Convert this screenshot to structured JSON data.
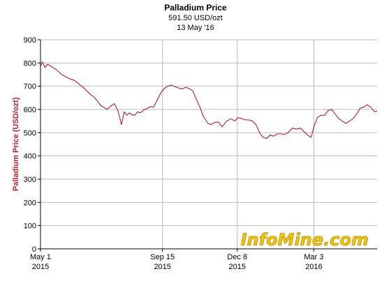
{
  "chart_data": {
    "type": "line",
    "title": "Palladium Price",
    "subtitle": "591.50 USD/ozt",
    "date_label": "13 May '16",
    "ylabel": "Palladium Price (USD/ozt)",
    "xlabel": "",
    "ylim": [
      0,
      900
    ],
    "yticks": [
      0,
      100,
      200,
      300,
      400,
      500,
      600,
      700,
      800,
      900
    ],
    "xlim": [
      "2015-05-01",
      "2016-05-13"
    ],
    "xticks": [
      {
        "date": "2015-05-01",
        "label": "May 1",
        "year": "2015"
      },
      {
        "date": "2015-09-15",
        "label": "Sep 15",
        "year": "2015"
      },
      {
        "date": "2015-12-08",
        "label": "Dec 8",
        "year": "2015"
      },
      {
        "date": "2016-03-03",
        "label": "Mar 3",
        "year": "2016"
      }
    ],
    "grid": true,
    "line_color": "#b01e28",
    "series": [
      {
        "x": [
          "2015-05-01",
          "2015-05-03",
          "2015-05-06",
          "2015-05-09",
          "2015-05-13",
          "2015-05-19",
          "2015-05-25",
          "2015-06-01",
          "2015-06-08",
          "2015-06-13",
          "2015-06-18",
          "2015-06-22",
          "2015-06-26",
          "2015-07-01",
          "2015-07-05",
          "2015-07-08",
          "2015-07-11",
          "2015-07-15",
          "2015-07-19",
          "2015-07-23",
          "2015-07-27",
          "2015-07-31",
          "2015-08-03",
          "2015-08-06",
          "2015-08-09",
          "2015-08-11",
          "2015-08-15",
          "2015-08-18",
          "2015-08-21",
          "2015-08-25",
          "2015-08-28",
          "2015-09-01",
          "2015-09-05",
          "2015-09-09",
          "2015-09-13",
          "2015-09-17",
          "2015-09-21",
          "2015-09-25",
          "2015-09-29",
          "2015-10-03",
          "2015-10-07",
          "2015-10-11",
          "2015-10-15",
          "2015-10-19",
          "2015-10-23",
          "2015-10-27",
          "2015-10-31",
          "2015-11-05",
          "2015-11-09",
          "2015-11-13",
          "2015-11-17",
          "2015-11-21",
          "2015-11-26",
          "2015-12-01",
          "2015-12-05",
          "2015-12-09",
          "2015-12-13",
          "2015-12-17",
          "2015-12-21",
          "2015-12-25",
          "2015-12-29",
          "2016-01-02",
          "2016-01-06",
          "2016-01-10",
          "2016-01-14",
          "2016-01-18",
          "2016-01-22",
          "2016-01-26",
          "2016-01-30",
          "2016-02-03",
          "2016-02-08",
          "2016-02-13",
          "2016-02-17",
          "2016-02-21",
          "2016-02-25",
          "2016-02-29",
          "2016-03-03",
          "2016-03-07",
          "2016-03-11",
          "2016-03-15",
          "2016-03-19",
          "2016-03-23",
          "2016-03-27",
          "2016-03-31",
          "2016-04-04",
          "2016-04-08",
          "2016-04-12",
          "2016-04-16",
          "2016-04-20",
          "2016-04-24",
          "2016-04-28",
          "2016-05-02",
          "2016-05-06",
          "2016-05-10",
          "2016-05-13"
        ],
        "y": [
          785,
          805,
          780,
          795,
          785,
          770,
          750,
          735,
          725,
          710,
          695,
          680,
          665,
          650,
          630,
          615,
          610,
          600,
          615,
          625,
          595,
          535,
          590,
          575,
          585,
          578,
          575,
          590,
          585,
          598,
          602,
          612,
          610,
          640,
          670,
          690,
          700,
          705,
          698,
          692,
          688,
          695,
          690,
          680,
          645,
          610,
          570,
          540,
          535,
          545,
          545,
          525,
          550,
          560,
          550,
          565,
          560,
          555,
          555,
          550,
          535,
          500,
          480,
          475,
          490,
          485,
          495,
          495,
          492,
          500,
          520,
          515,
          520,
          505,
          490,
          480,
          525,
          565,
          575,
          575,
          595,
          600,
          580,
          560,
          550,
          540,
          550,
          560,
          580,
          605,
          610,
          620,
          610,
          590,
          592
        ]
      }
    ]
  },
  "watermark": "InfoMine.com"
}
